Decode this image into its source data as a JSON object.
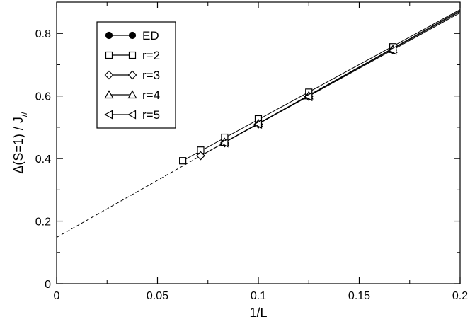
{
  "chart_data": {
    "type": "line",
    "xlabel": "1/L",
    "ylabel_main": "Δ(S=1) / J",
    "ylabel_sub": "//",
    "xlim": [
      0,
      0.2
    ],
    "ylim": [
      0,
      0.9
    ],
    "xticks": [
      0,
      0.05,
      0.1,
      0.15,
      0.2
    ],
    "xtick_labels": [
      "0",
      "0.05",
      "0.1",
      "0.15",
      "0.2"
    ],
    "yticks": [
      0,
      0.2,
      0.4,
      0.6,
      0.8
    ],
    "ytick_labels": [
      "0",
      "0.2",
      "0.4",
      "0.6",
      "0.8"
    ],
    "grid": false,
    "legend_position": "top-left",
    "series": [
      {
        "name": "ED",
        "marker": "filled-circle",
        "x": [
          0.0833,
          0.1,
          0.125,
          0.1667
        ],
        "y": [
          0.452,
          0.512,
          0.6,
          0.748
        ]
      },
      {
        "name": "r=2",
        "marker": "square",
        "x": [
          0.0625,
          0.0714,
          0.0833,
          0.1,
          0.125,
          0.1667
        ],
        "y": [
          0.393,
          0.427,
          0.468,
          0.527,
          0.612,
          0.757
        ]
      },
      {
        "name": "r=3",
        "marker": "diamond",
        "x": [
          0.0714,
          0.0833,
          0.1,
          0.125,
          0.1667
        ],
        "y": [
          0.409,
          0.45,
          0.51,
          0.598,
          0.747
        ]
      },
      {
        "name": "r=4",
        "marker": "triangle-up",
        "x": [
          0.0833,
          0.1,
          0.125,
          0.1667
        ],
        "y": [
          0.452,
          0.512,
          0.601,
          0.749
        ]
      },
      {
        "name": "r=5",
        "marker": "triangle-left",
        "x": [
          0.0833,
          0.1,
          0.125,
          0.1667
        ],
        "y": [
          0.45,
          0.51,
          0.598,
          0.746
        ]
      }
    ],
    "fit_lines": [
      {
        "style": "dashed",
        "x": [
          0,
          0.0833
        ],
        "y": [
          0.148,
          0.452
        ]
      },
      {
        "style": "solid",
        "x": [
          0.0833,
          0.2
        ],
        "y": [
          0.452,
          0.873
        ]
      },
      {
        "style": "solid",
        "x": [
          0.0625,
          0.2
        ],
        "y": [
          0.393,
          0.876
        ]
      },
      {
        "style": "solid",
        "x": [
          0.0714,
          0.2
        ],
        "y": [
          0.409,
          0.866
        ]
      },
      {
        "style": "solid",
        "x": [
          0.0833,
          0.2
        ],
        "y": [
          0.452,
          0.87
        ]
      }
    ]
  }
}
